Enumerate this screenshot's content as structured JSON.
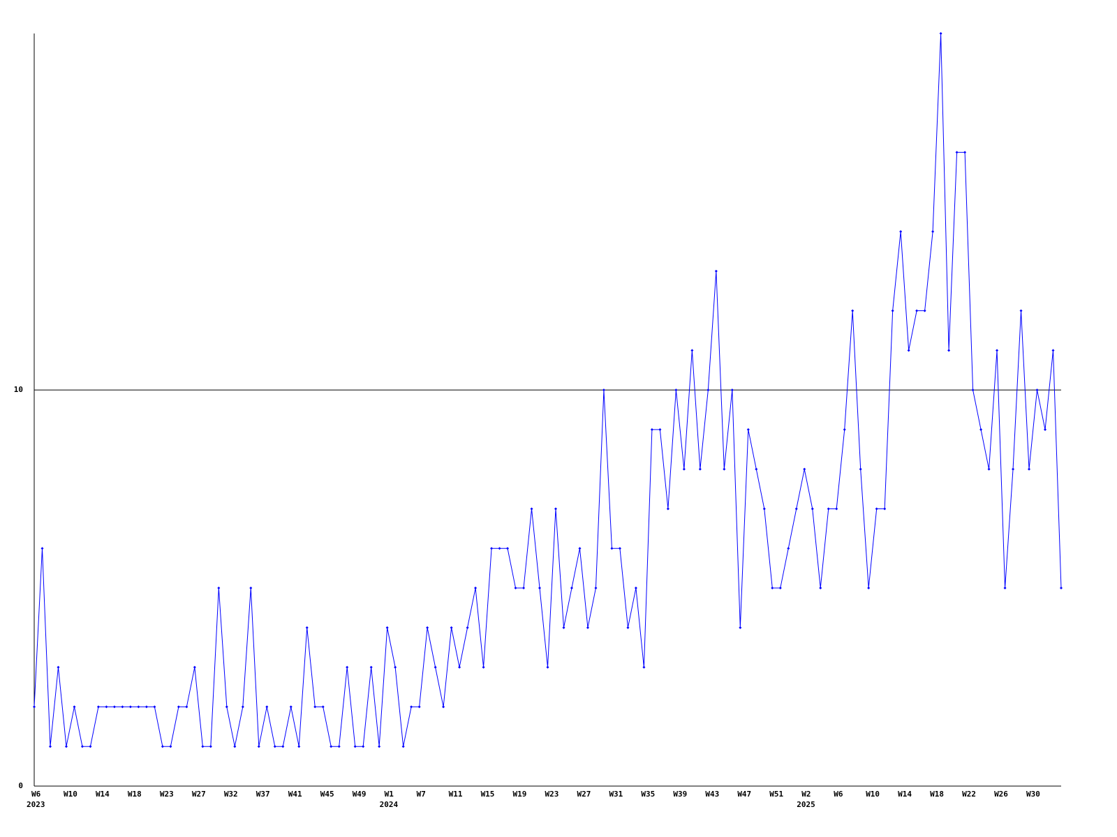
{
  "chart_data": {
    "type": "line",
    "categories": [
      "W6",
      null,
      null,
      null,
      "W10",
      null,
      null,
      null,
      "W14",
      null,
      null,
      null,
      "W18",
      null,
      null,
      null,
      "W23",
      null,
      null,
      null,
      "W27",
      null,
      null,
      null,
      "W32",
      null,
      null,
      null,
      "W37",
      null,
      null,
      null,
      "W41",
      null,
      null,
      null,
      "W45",
      null,
      null,
      null,
      "W49",
      null,
      null,
      null,
      "W1",
      null,
      null,
      null,
      "W7",
      null,
      null,
      null,
      "W11",
      null,
      null,
      null,
      "W15",
      null,
      null,
      null,
      "W19",
      null,
      null,
      null,
      "W23",
      null,
      null,
      null,
      "W27",
      null,
      null,
      null,
      "W31",
      null,
      null,
      null,
      "W35",
      null,
      null,
      null,
      "W39",
      null,
      null,
      null,
      "W43",
      null,
      null,
      null,
      "W47",
      null,
      null,
      null,
      "W51",
      null,
      null,
      null,
      "W2",
      null,
      null,
      null,
      "W6",
      null,
      null,
      null,
      "W10",
      null,
      null,
      null,
      "W14",
      null,
      null,
      null,
      "W18",
      null,
      null,
      null,
      "W22",
      null,
      null,
      null,
      "W26",
      null,
      null,
      null,
      "W30",
      null,
      null,
      null,
      null
    ],
    "year_labels": [
      "2023",
      null,
      null,
      null,
      null,
      null,
      null,
      null,
      null,
      null,
      null,
      null,
      null,
      null,
      null,
      null,
      null,
      null,
      null,
      null,
      null,
      null,
      null,
      null,
      null,
      null,
      null,
      null,
      null,
      null,
      null,
      null,
      null,
      null,
      null,
      null,
      null,
      null,
      null,
      null,
      null,
      null,
      null,
      null,
      "2024",
      null,
      null,
      null,
      null,
      null,
      null,
      null,
      null,
      null,
      null,
      null,
      null,
      null,
      null,
      null,
      null,
      null,
      null,
      null,
      null,
      null,
      null,
      null,
      null,
      null,
      null,
      null,
      null,
      null,
      null,
      null,
      null,
      null,
      null,
      null,
      null,
      null,
      null,
      null,
      null,
      null,
      null,
      null,
      null,
      null,
      null,
      null,
      null,
      null,
      null,
      null,
      "2025",
      null,
      null,
      null,
      null,
      null,
      null,
      null,
      null,
      null,
      null,
      null,
      null,
      null,
      null,
      null,
      null,
      null,
      null,
      null,
      null,
      null,
      null,
      null,
      null,
      null,
      null,
      null,
      null,
      null,
      null,
      null,
      null
    ],
    "values": [
      2,
      6,
      1,
      3,
      1,
      2,
      1,
      1,
      2,
      2,
      2,
      2,
      2,
      2,
      2,
      2,
      1,
      1,
      2,
      2,
      3,
      1,
      1,
      5,
      2,
      1,
      2,
      5,
      1,
      2,
      1,
      1,
      2,
      1,
      4,
      2,
      2,
      1,
      1,
      3,
      1,
      1,
      3,
      1,
      4,
      3,
      1,
      2,
      2,
      4,
      3,
      2,
      4,
      3,
      4,
      5,
      3,
      6,
      6,
      6,
      5,
      5,
      7,
      5,
      3,
      7,
      4,
      5,
      6,
      4,
      5,
      10,
      6,
      6,
      4,
      5,
      3,
      9,
      9,
      7,
      10,
      8,
      11,
      8,
      10,
      13,
      8,
      10,
      4,
      9,
      8,
      7,
      5,
      5,
      6,
      7,
      8,
      7,
      5,
      7,
      7,
      9,
      12,
      8,
      5,
      7,
      7,
      12,
      14,
      11,
      12,
      12,
      14,
      19,
      11,
      16,
      16,
      10,
      9,
      8,
      11,
      5,
      8,
      12,
      8,
      10,
      9,
      11,
      5
    ],
    "color": "#0000ff",
    "ylim": [
      0,
      19
    ],
    "yticks": [
      0,
      10
    ],
    "grid": true
  }
}
